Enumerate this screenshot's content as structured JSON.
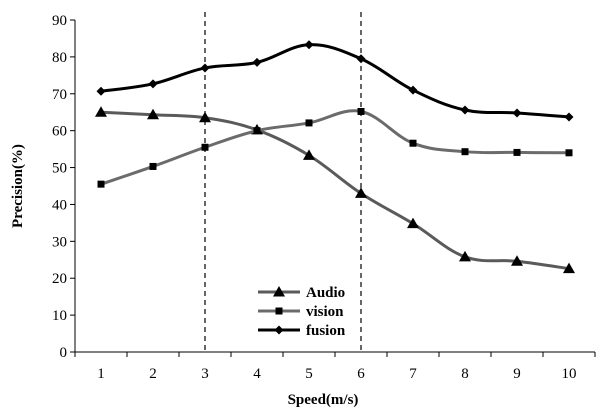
{
  "chart_data": {
    "type": "line",
    "title": "",
    "xlabel": "Speed(m/s)",
    "ylabel": "Precision(%)",
    "x": [
      1,
      2,
      3,
      4,
      5,
      6,
      7,
      8,
      9,
      10
    ],
    "xlim": [
      0.5,
      10.5
    ],
    "ylim": [
      0,
      90
    ],
    "y_ticks": [
      0,
      10,
      20,
      30,
      40,
      50,
      60,
      70,
      80,
      90
    ],
    "grid": false,
    "legend_position": "bottom-center",
    "smooth": true,
    "vertical_reference_lines": [
      3,
      6
    ],
    "series": [
      {
        "name": "Audio",
        "marker": "triangle",
        "color": "#5a5a5a",
        "values": [
          65.0,
          64.3,
          63.5,
          60.2,
          53.3,
          43.0,
          34.8,
          25.8,
          24.6,
          22.6
        ]
      },
      {
        "name": "vision",
        "marker": "square",
        "color": "#6b6b6b",
        "values": [
          45.5,
          50.3,
          55.5,
          60.0,
          62.1,
          65.2,
          56.6,
          54.3,
          54.1,
          54.0
        ]
      },
      {
        "name": "fusion",
        "marker": "diamond",
        "color": "#000000",
        "values": [
          70.7,
          72.7,
          77.0,
          78.5,
          83.3,
          79.5,
          71.0,
          65.6,
          64.8,
          63.7
        ]
      }
    ]
  }
}
